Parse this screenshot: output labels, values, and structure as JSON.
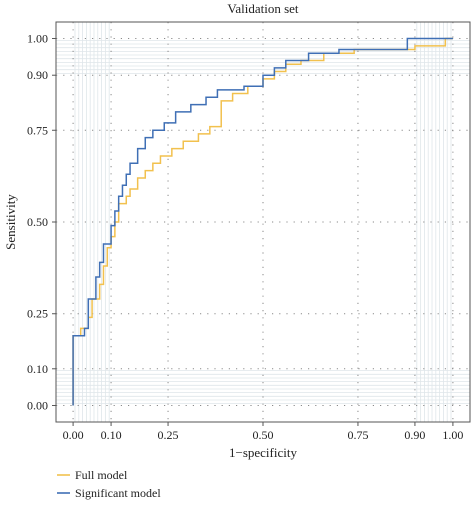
{
  "chart_data": {
    "type": "line",
    "title": "Validation set",
    "xlabel": "1−specificity",
    "ylabel": "Sensitivity",
    "xlim": [
      0,
      1
    ],
    "ylim": [
      0,
      1
    ],
    "x_ticks": [
      0.0,
      0.1,
      0.25,
      0.5,
      0.75,
      0.9,
      1.0
    ],
    "x_tick_labels": [
      "0.00",
      "0.10",
      "0.25",
      "0.50",
      "0.75",
      "0.90",
      "1.00"
    ],
    "y_ticks": [
      0.0,
      0.1,
      0.25,
      0.5,
      0.75,
      0.9,
      1.0
    ],
    "y_tick_labels": [
      "0.00",
      "0.10",
      "0.25",
      "0.50",
      "0.75",
      "0.90",
      "1.00"
    ],
    "grid": true,
    "legend_position": "bottom-left",
    "series": [
      {
        "name": "Full model",
        "color": "#F2C14E",
        "points": [
          [
            0.0,
            0.0
          ],
          [
            0.0,
            0.19
          ],
          [
            0.02,
            0.19
          ],
          [
            0.02,
            0.21
          ],
          [
            0.04,
            0.21
          ],
          [
            0.04,
            0.24
          ],
          [
            0.05,
            0.24
          ],
          [
            0.05,
            0.29
          ],
          [
            0.07,
            0.29
          ],
          [
            0.07,
            0.33
          ],
          [
            0.08,
            0.33
          ],
          [
            0.08,
            0.38
          ],
          [
            0.09,
            0.38
          ],
          [
            0.09,
            0.43
          ],
          [
            0.1,
            0.43
          ],
          [
            0.1,
            0.46
          ],
          [
            0.11,
            0.46
          ],
          [
            0.11,
            0.5
          ],
          [
            0.12,
            0.5
          ],
          [
            0.12,
            0.55
          ],
          [
            0.14,
            0.55
          ],
          [
            0.14,
            0.57
          ],
          [
            0.15,
            0.57
          ],
          [
            0.15,
            0.59
          ],
          [
            0.17,
            0.59
          ],
          [
            0.17,
            0.62
          ],
          [
            0.19,
            0.62
          ],
          [
            0.19,
            0.64
          ],
          [
            0.21,
            0.64
          ],
          [
            0.21,
            0.66
          ],
          [
            0.23,
            0.66
          ],
          [
            0.23,
            0.68
          ],
          [
            0.26,
            0.68
          ],
          [
            0.26,
            0.7
          ],
          [
            0.29,
            0.7
          ],
          [
            0.29,
            0.72
          ],
          [
            0.33,
            0.72
          ],
          [
            0.33,
            0.74
          ],
          [
            0.36,
            0.74
          ],
          [
            0.36,
            0.76
          ],
          [
            0.39,
            0.76
          ],
          [
            0.39,
            0.83
          ],
          [
            0.42,
            0.83
          ],
          [
            0.42,
            0.85
          ],
          [
            0.46,
            0.85
          ],
          [
            0.46,
            0.87
          ],
          [
            0.5,
            0.87
          ],
          [
            0.5,
            0.89
          ],
          [
            0.53,
            0.89
          ],
          [
            0.53,
            0.91
          ],
          [
            0.56,
            0.91
          ],
          [
            0.56,
            0.93
          ],
          [
            0.6,
            0.93
          ],
          [
            0.6,
            0.94
          ],
          [
            0.66,
            0.94
          ],
          [
            0.66,
            0.96
          ],
          [
            0.74,
            0.96
          ],
          [
            0.74,
            0.97
          ],
          [
            0.9,
            0.97
          ],
          [
            0.9,
            0.98
          ],
          [
            0.98,
            0.98
          ],
          [
            0.98,
            1.0
          ],
          [
            1.0,
            1.0
          ]
        ]
      },
      {
        "name": "Significant model",
        "color": "#3F6FB5",
        "points": [
          [
            0.0,
            0.0
          ],
          [
            0.0,
            0.19
          ],
          [
            0.03,
            0.19
          ],
          [
            0.03,
            0.21
          ],
          [
            0.04,
            0.21
          ],
          [
            0.04,
            0.29
          ],
          [
            0.06,
            0.29
          ],
          [
            0.06,
            0.35
          ],
          [
            0.07,
            0.35
          ],
          [
            0.07,
            0.39
          ],
          [
            0.08,
            0.39
          ],
          [
            0.08,
            0.44
          ],
          [
            0.1,
            0.44
          ],
          [
            0.1,
            0.49
          ],
          [
            0.11,
            0.49
          ],
          [
            0.11,
            0.53
          ],
          [
            0.12,
            0.53
          ],
          [
            0.12,
            0.57
          ],
          [
            0.13,
            0.57
          ],
          [
            0.13,
            0.6
          ],
          [
            0.14,
            0.6
          ],
          [
            0.14,
            0.63
          ],
          [
            0.15,
            0.63
          ],
          [
            0.15,
            0.66
          ],
          [
            0.17,
            0.66
          ],
          [
            0.17,
            0.7
          ],
          [
            0.19,
            0.7
          ],
          [
            0.19,
            0.73
          ],
          [
            0.21,
            0.73
          ],
          [
            0.21,
            0.75
          ],
          [
            0.24,
            0.75
          ],
          [
            0.24,
            0.77
          ],
          [
            0.27,
            0.77
          ],
          [
            0.27,
            0.8
          ],
          [
            0.31,
            0.8
          ],
          [
            0.31,
            0.82
          ],
          [
            0.35,
            0.82
          ],
          [
            0.35,
            0.84
          ],
          [
            0.38,
            0.84
          ],
          [
            0.38,
            0.86
          ],
          [
            0.45,
            0.86
          ],
          [
            0.45,
            0.87
          ],
          [
            0.5,
            0.87
          ],
          [
            0.5,
            0.9
          ],
          [
            0.53,
            0.9
          ],
          [
            0.53,
            0.92
          ],
          [
            0.56,
            0.92
          ],
          [
            0.56,
            0.94
          ],
          [
            0.62,
            0.94
          ],
          [
            0.62,
            0.96
          ],
          [
            0.7,
            0.96
          ],
          [
            0.7,
            0.97
          ],
          [
            0.88,
            0.97
          ],
          [
            0.88,
            1.0
          ],
          [
            1.0,
            1.0
          ]
        ]
      }
    ]
  }
}
